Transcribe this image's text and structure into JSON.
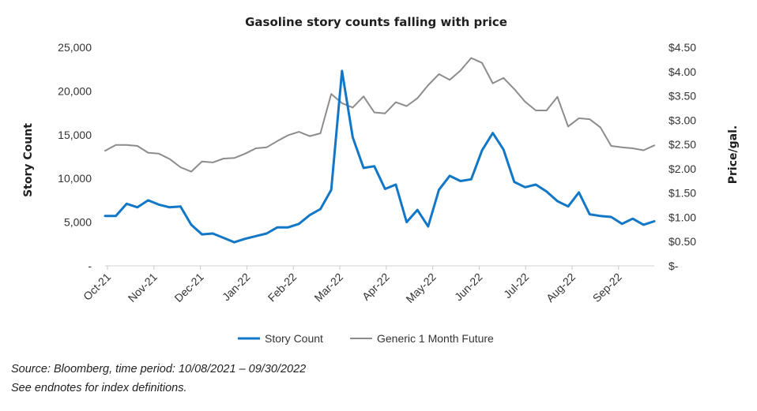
{
  "chart_data": {
    "type": "line",
    "title": "Gasoline story counts falling with price",
    "ylabel": "Story Count",
    "y2label": "Price/gal.",
    "ylim": [
      0,
      25000
    ],
    "y2lim": [
      0,
      4.5
    ],
    "y_ticks": [
      0,
      5000,
      10000,
      15000,
      20000,
      25000
    ],
    "y_tick_labels": [
      "-",
      "5,000",
      "10,000",
      "15,000",
      "20,000",
      "25,000"
    ],
    "y2_ticks": [
      0,
      0.5,
      1,
      1.5,
      2,
      2.5,
      3,
      3.5,
      4,
      4.5
    ],
    "y2_tick_labels": [
      "$-",
      "$0.50",
      "$1.00",
      "$1.50",
      "$2.00",
      "$2.50",
      "$3.00",
      "$3.50",
      "$4.00",
      "$4.50"
    ],
    "x_tick_labels": [
      "Oct-21",
      "Nov-21",
      "Dec-21",
      "Jan-22",
      "Feb-22",
      "Mar-22",
      "Apr-22",
      "May-22",
      "Jun-22",
      "Jul-22",
      "Aug-22",
      "Sep-22"
    ],
    "legend_position": "bottom",
    "grid": false,
    "series": [
      {
        "name": "Story Count",
        "axis": "left",
        "color": "#1177C6",
        "values": [
          5700,
          5700,
          7100,
          6700,
          7500,
          7000,
          6700,
          6800,
          4700,
          3600,
          3700,
          3200,
          2700,
          3100,
          3400,
          3700,
          4400,
          4400,
          4800,
          5800,
          6500,
          8700,
          22300,
          14700,
          11200,
          11400,
          8800,
          9300,
          5000,
          6400,
          4500,
          8700,
          10300,
          9700,
          9900,
          13200,
          15200,
          13300,
          9600,
          9000,
          9300,
          8500,
          7400,
          6800,
          8400,
          5900,
          5700,
          5600,
          4800,
          5400,
          4700,
          5100
        ]
      },
      {
        "name": "Generic 1 Month Future",
        "axis": "right",
        "color": "#8C8C8C",
        "values": [
          2.37,
          2.49,
          2.49,
          2.47,
          2.33,
          2.31,
          2.2,
          2.03,
          1.94,
          2.15,
          2.13,
          2.21,
          2.22,
          2.31,
          2.42,
          2.44,
          2.57,
          2.69,
          2.76,
          2.67,
          2.73,
          3.54,
          3.35,
          3.26,
          3.49,
          3.16,
          3.14,
          3.37,
          3.29,
          3.45,
          3.72,
          3.95,
          3.83,
          4.02,
          4.28,
          4.18,
          3.76,
          3.87,
          3.64,
          3.38,
          3.2,
          3.2,
          3.48,
          2.87,
          3.04,
          3.02,
          2.85,
          2.47,
          2.44,
          2.42,
          2.38,
          2.48
        ]
      }
    ]
  },
  "footnotes": {
    "source": "Source: Bloomberg, time period: 10/08/2021 – 09/30/2022",
    "endnotes": "See endnotes for index definitions."
  }
}
